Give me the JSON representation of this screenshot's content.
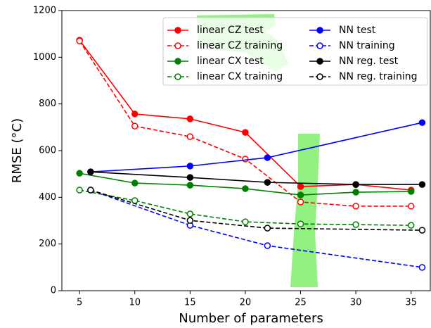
{
  "chart_data": {
    "type": "line",
    "x_label": "Number of parameters",
    "y_label": "RMSE (°C)",
    "xlim": [
      3.4,
      36.8
    ],
    "xticks": [
      5,
      10,
      15,
      20,
      25,
      30,
      35
    ],
    "ylim": [
      0,
      1200
    ],
    "yticks": [
      0,
      200,
      400,
      600,
      800,
      1000,
      1200
    ],
    "series": [
      {
        "name": "linear CZ test",
        "color": "#ff0000",
        "dashed": false,
        "marker": "filled",
        "x": [
          5,
          10,
          15,
          20,
          25,
          30,
          35
        ],
        "values": [
          1073,
          757,
          736,
          678,
          446,
          455,
          431
        ]
      },
      {
        "name": "linear CZ training",
        "color": "#ff0000",
        "dashed": true,
        "marker": "open",
        "x": [
          5,
          10,
          15,
          20,
          25,
          30,
          35
        ],
        "values": [
          1070,
          705,
          660,
          564,
          380,
          362,
          362
        ]
      },
      {
        "name": "linear CX test",
        "color": "#008000",
        "dashed": false,
        "marker": "filled",
        "x": [
          5,
          10,
          15,
          20,
          25,
          30,
          35
        ],
        "values": [
          503,
          461,
          452,
          437,
          410,
          422,
          425
        ]
      },
      {
        "name": "linear CX training",
        "color": "#008000",
        "dashed": true,
        "marker": "open",
        "x": [
          5,
          10,
          15,
          20,
          25,
          30,
          35
        ],
        "values": [
          431,
          386,
          329,
          295,
          286,
          283,
          280
        ]
      },
      {
        "name": "NN test",
        "color": "#0000ff",
        "dashed": false,
        "marker": "filled",
        "x": [
          6,
          15,
          22,
          36
        ],
        "values": [
          509,
          534,
          570,
          720
        ]
      },
      {
        "name": "NN training",
        "color": "#0000ff",
        "dashed": true,
        "marker": "open",
        "x": [
          6,
          15,
          22,
          36
        ],
        "values": [
          431,
          280,
          193,
          100
        ]
      },
      {
        "name": "NN reg. test",
        "color": "#000000",
        "dashed": false,
        "marker": "filled",
        "x": [
          6,
          15,
          22,
          30,
          36
        ],
        "values": [
          509,
          485,
          464,
          455,
          455
        ]
      },
      {
        "name": "NN reg. training",
        "color": "#000000",
        "dashed": true,
        "marker": "open",
        "x": [
          6,
          15,
          22,
          36
        ],
        "values": [
          431,
          301,
          268,
          259
        ]
      }
    ]
  }
}
